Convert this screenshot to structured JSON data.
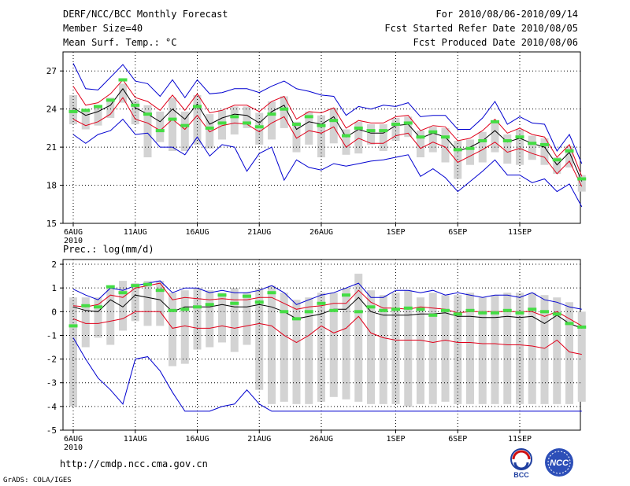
{
  "header": {
    "title": "DERF/NCC/BCC Monthly Forecast",
    "member_size": "Member Size=40",
    "variable_top": "Mean Surf. Temp.: °C",
    "period": "For 2010/08/06-2010/09/14",
    "fcst_started": "Fcst Started Refer Date 2010/08/05",
    "fcst_produced": "Fcst Produced Date 2010/08/06"
  },
  "footer": {
    "url": "http://cmdp.ncc.cma.gov.cn",
    "grads": "GrADS: COLA/IGES",
    "logo_bcc": "BCC",
    "logo_ncc": "NCC"
  },
  "colors": {
    "box": "#d3d3d3",
    "mean": "#000000",
    "spread": "#e0001a",
    "extreme": "#0000d0",
    "marker": "#44dd44",
    "grid": "#000000"
  },
  "chart_data": [
    {
      "type": "line",
      "title": "Mean Surf. Temp.: °C",
      "x_ticks": [
        "6AUG",
        "11AUG",
        "16AUG",
        "21AUG",
        "26AUG",
        "1SEP",
        "6SEP",
        "11SEP"
      ],
      "x_tick_days": [
        0,
        5,
        10,
        15,
        20,
        26,
        31,
        36
      ],
      "x_sub": "2010",
      "ylim": [
        15,
        28.5
      ],
      "y_ticks": [
        15,
        18,
        21,
        24,
        27
      ],
      "y_tick_labels": [
        "15",
        "18",
        "21",
        "24",
        "27"
      ],
      "series": [
        {
          "name": "mean",
          "values": [
            24.1,
            23.5,
            23.8,
            24.3,
            25.6,
            24.1,
            23.6,
            23.0,
            24.0,
            23.2,
            24.4,
            22.8,
            23.3,
            23.6,
            23.5,
            22.9,
            23.8,
            24.3,
            22.4,
            23.0,
            22.8,
            23.4,
            21.8,
            22.4,
            22.1,
            22.1,
            22.7,
            22.8,
            21.7,
            22.1,
            21.8,
            20.7,
            21.0,
            21.5,
            22.3,
            21.4,
            21.7,
            21.3,
            21.0,
            19.6,
            20.6,
            18.3
          ]
        },
        {
          "name": "upper",
          "values": [
            25.8,
            24.3,
            24.5,
            25.2,
            26.3,
            24.9,
            24.6,
            23.9,
            25.1,
            23.9,
            25.2,
            23.7,
            23.9,
            24.3,
            24.3,
            23.8,
            24.6,
            25.0,
            23.2,
            23.8,
            23.7,
            24.1,
            22.5,
            23.1,
            22.9,
            22.9,
            23.4,
            23.5,
            22.3,
            22.7,
            22.6,
            21.5,
            21.7,
            22.3,
            23.2,
            22.1,
            22.5,
            22.0,
            21.8,
            20.2,
            21.2,
            18.7
          ]
        },
        {
          "name": "lower",
          "values": [
            23.2,
            22.7,
            23.0,
            23.6,
            24.9,
            23.2,
            22.9,
            22.3,
            23.2,
            22.4,
            23.5,
            22.2,
            22.7,
            22.9,
            22.8,
            22.2,
            22.9,
            23.4,
            21.7,
            22.3,
            22.1,
            22.6,
            21.0,
            21.7,
            21.3,
            21.3,
            21.9,
            22.1,
            20.9,
            21.4,
            21.0,
            19.8,
            20.3,
            20.8,
            21.4,
            20.6,
            20.9,
            20.5,
            20.2,
            18.9,
            19.9,
            17.9
          ]
        },
        {
          "name": "max",
          "values": [
            27.6,
            25.6,
            25.5,
            26.5,
            27.5,
            26.2,
            26.0,
            25.0,
            26.3,
            24.9,
            26.3,
            25.2,
            25.3,
            25.6,
            25.6,
            25.3,
            25.8,
            26.2,
            25.6,
            25.4,
            25.1,
            25.0,
            23.5,
            24.2,
            24.0,
            24.3,
            24.2,
            24.5,
            23.4,
            23.5,
            23.5,
            22.4,
            22.4,
            23.3,
            24.6,
            22.8,
            23.4,
            22.9,
            22.8,
            20.7,
            22.0,
            19.7
          ]
        },
        {
          "name": "min",
          "values": [
            22.0,
            21.3,
            22.0,
            22.3,
            23.2,
            22.0,
            22.1,
            21.0,
            21.0,
            20.4,
            21.8,
            20.3,
            21.2,
            21.0,
            19.1,
            20.5,
            21.0,
            18.4,
            20.0,
            19.4,
            19.2,
            19.7,
            19.5,
            19.7,
            19.9,
            20.0,
            20.2,
            20.4,
            18.7,
            19.3,
            18.6,
            17.5,
            18.3,
            19.1,
            20.0,
            18.8,
            18.8,
            18.2,
            18.5,
            17.5,
            18.1,
            16.3
          ]
        },
        {
          "name": "box_top",
          "values": [
            25.1,
            24.0,
            24.3,
            24.9,
            26.0,
            24.7,
            24.3,
            23.8,
            24.9,
            23.8,
            25.1,
            23.6,
            23.9,
            24.2,
            24.2,
            23.7,
            24.6,
            25.0,
            23.0,
            23.8,
            23.5,
            24.1,
            22.4,
            23.0,
            22.8,
            22.8,
            23.3,
            23.4,
            22.3,
            22.6,
            22.5,
            21.5,
            21.6,
            22.2,
            23.1,
            22.0,
            22.4,
            21.9,
            21.7,
            20.2,
            21.1,
            18.8
          ]
        },
        {
          "name": "box_bottom",
          "values": [
            22.8,
            22.4,
            22.7,
            23.3,
            24.5,
            22.8,
            20.2,
            21.4,
            20.7,
            20.7,
            21.2,
            20.9,
            21.6,
            22.0,
            22.5,
            21.2,
            21.6,
            22.5,
            20.6,
            21.2,
            20.2,
            21.3,
            20.4,
            20.5,
            21.2,
            20.7,
            21.5,
            21.8,
            20.2,
            20.6,
            19.8,
            18.5,
            19.6,
            19.8,
            20.6,
            19.7,
            19.6,
            20.0,
            19.6,
            18.9,
            19.4,
            17.5
          ]
        },
        {
          "name": "observed",
          "values": [
            23.8,
            23.9,
            24.2,
            24.7,
            26.3,
            24.3,
            23.6,
            22.3,
            23.2,
            22.7,
            24.2,
            22.5,
            22.9,
            23.4,
            22.9,
            22.6,
            23.6,
            24.0,
            22.8,
            23.4,
            22.7,
            23.1,
            21.9,
            22.5,
            22.3,
            22.3,
            22.8,
            22.9,
            21.8,
            22.2,
            21.8,
            20.8,
            20.9,
            21.5,
            23.0,
            21.5,
            21.8,
            21.3,
            21.2,
            20.0,
            20.7,
            18.5
          ]
        }
      ]
    },
    {
      "type": "line",
      "title": "Prec.: log(mm/d)",
      "x_ticks": [
        "6AUG",
        "11AUG",
        "16AUG",
        "21AUG",
        "26AUG",
        "1SEP",
        "6SEP",
        "11SEP"
      ],
      "x_tick_days": [
        0,
        5,
        10,
        15,
        20,
        26,
        31,
        36
      ],
      "x_sub": "2010",
      "ylim": [
        -5,
        2.2
      ],
      "y_ticks": [
        -5,
        -4,
        -3,
        -2,
        -1,
        0,
        1,
        2
      ],
      "y_tick_labels": [
        "-5",
        "-4",
        "-3",
        "-2",
        "-1",
        "0",
        "1",
        "2"
      ],
      "series": [
        {
          "name": "mean",
          "values": [
            0.2,
            0.05,
            0.0,
            0.5,
            0.2,
            0.7,
            0.6,
            0.5,
            0.0,
            0.2,
            0.2,
            0.2,
            0.3,
            0.2,
            0.2,
            0.3,
            0.2,
            0.0,
            -0.3,
            -0.2,
            -0.1,
            0.1,
            0.1,
            0.6,
            0.0,
            -0.15,
            -0.15,
            -0.15,
            -0.1,
            -0.1,
            -0.05,
            -0.2,
            -0.2,
            -0.25,
            -0.25,
            -0.2,
            -0.25,
            -0.2,
            -0.5,
            -0.15,
            -0.5,
            -0.7
          ]
        },
        {
          "name": "upper",
          "values": [
            0.25,
            0.2,
            0.3,
            0.7,
            0.6,
            1.0,
            1.1,
            1.2,
            0.5,
            0.6,
            0.55,
            0.5,
            0.55,
            0.5,
            0.5,
            0.6,
            0.6,
            0.35,
            0.1,
            0.2,
            0.25,
            0.35,
            0.35,
            0.9,
            0.4,
            0.15,
            0.15,
            0.1,
            0.2,
            0.15,
            0.1,
            -0.05,
            0.0,
            0.0,
            0.0,
            0.0,
            0.0,
            0.0,
            -0.2,
            0.0,
            -0.3,
            -0.6
          ]
        },
        {
          "name": "lower",
          "values": [
            -0.3,
            -0.5,
            -0.5,
            -0.4,
            -0.3,
            0.0,
            0.0,
            0.0,
            -0.7,
            -0.6,
            -0.7,
            -0.7,
            -0.6,
            -0.7,
            -0.6,
            -0.5,
            -0.6,
            -1.0,
            -1.3,
            -1.0,
            -0.6,
            -0.9,
            -0.7,
            -0.2,
            -0.9,
            -1.1,
            -1.2,
            -1.2,
            -1.2,
            -1.3,
            -1.2,
            -1.3,
            -1.3,
            -1.35,
            -1.35,
            -1.4,
            -1.4,
            -1.45,
            -1.55,
            -1.2,
            -1.7,
            -1.8
          ]
        },
        {
          "name": "max",
          "values": [
            0.95,
            0.7,
            0.5,
            1.0,
            0.9,
            1.1,
            1.2,
            1.3,
            0.8,
            1.0,
            1.0,
            0.8,
            0.9,
            0.8,
            0.8,
            0.9,
            1.1,
            0.8,
            0.3,
            0.5,
            0.7,
            0.8,
            1.0,
            1.2,
            0.6,
            0.6,
            0.9,
            0.9,
            0.8,
            0.9,
            0.7,
            0.8,
            0.7,
            0.6,
            0.7,
            0.7,
            0.6,
            0.8,
            0.5,
            0.4,
            0.2,
            0.1
          ]
        },
        {
          "name": "min",
          "values": [
            -1.1,
            -2.0,
            -2.8,
            -3.3,
            -3.9,
            -2.0,
            -1.9,
            -2.5,
            -3.4,
            -4.2,
            -4.2,
            -4.2,
            -4.0,
            -3.9,
            -3.3,
            -3.9,
            -4.2,
            -4.2,
            -4.2,
            -4.2,
            -4.2,
            -4.2,
            -4.2,
            -4.2,
            -4.2,
            -4.2,
            -4.2,
            -4.2,
            -4.2,
            -4.2,
            -4.2,
            -4.2,
            -4.2,
            -4.2,
            -4.2,
            -4.2,
            -4.2,
            -4.2,
            -4.2,
            -4.2,
            -4.2,
            -4.2
          ]
        },
        {
          "name": "box_top",
          "values": [
            0.6,
            0.6,
            0.6,
            1.1,
            1.3,
            1.2,
            1.3,
            1.3,
            0.8,
            0.9,
            1.0,
            0.9,
            0.8,
            1.0,
            0.8,
            1.0,
            1.1,
            0.8,
            0.5,
            0.6,
            0.8,
            0.8,
            1.0,
            1.6,
            0.9,
            0.7,
            0.8,
            0.9,
            0.6,
            0.8,
            0.7,
            0.7,
            0.8,
            0.6,
            0.7,
            0.8,
            0.8,
            0.8,
            0.7,
            0.6,
            0.4,
            0.0
          ]
        },
        {
          "name": "box_bottom",
          "values": [
            -4.0,
            -1.5,
            -1.1,
            -1.4,
            -0.8,
            -0.4,
            -0.6,
            -0.6,
            -2.3,
            -2.2,
            -1.6,
            -1.5,
            -1.3,
            -1.7,
            -1.4,
            -3.3,
            -3.9,
            -3.8,
            -3.9,
            -3.9,
            -3.8,
            -3.6,
            -3.7,
            -3.8,
            -3.9,
            -3.9,
            -3.9,
            -4.0,
            -3.9,
            -3.9,
            -3.8,
            -3.9,
            -3.9,
            -3.9,
            -3.9,
            -3.9,
            -3.9,
            -3.9,
            -3.9,
            -3.9,
            -3.9,
            -3.8
          ]
        },
        {
          "name": "observed",
          "values": [
            -0.6,
            0.25,
            0.2,
            1.05,
            0.8,
            1.1,
            1.15,
            0.9,
            0.05,
            0.1,
            0.2,
            0.3,
            0.7,
            0.35,
            0.65,
            0.4,
            0.8,
            0.0,
            -0.3,
            0.0,
            0.35,
            0.05,
            0.7,
            0.0,
            0.2,
            0.05,
            0.1,
            0.15,
            0.1,
            -0.15,
            0.05,
            -0.1,
            0.05,
            -0.05,
            -0.05,
            0.05,
            -0.05,
            0.1,
            0.0,
            -0.1,
            -0.5,
            -0.65
          ]
        }
      ]
    }
  ]
}
